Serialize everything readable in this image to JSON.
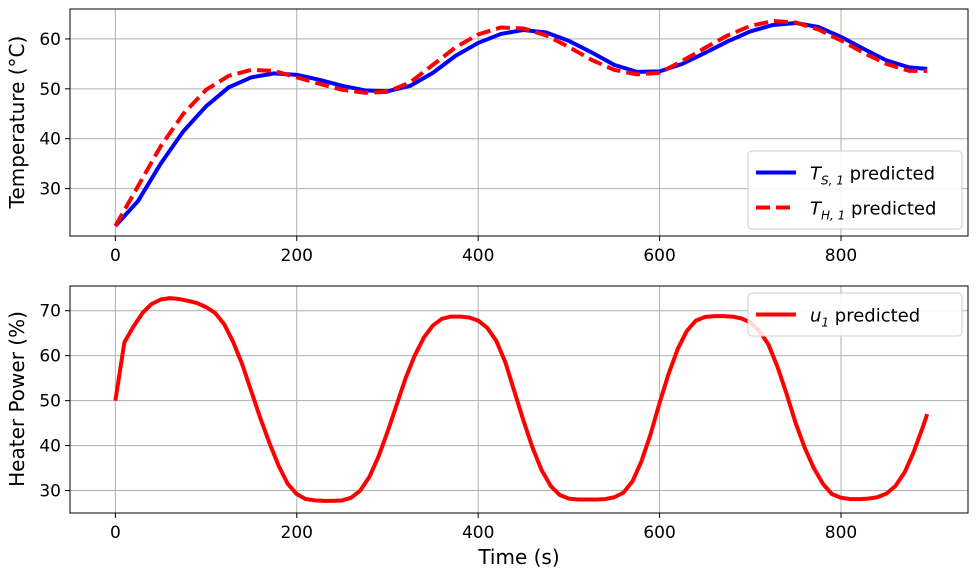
{
  "chart_data": [
    {
      "type": "line",
      "xlabel": "",
      "ylabel": "Temperature (°C)",
      "xlim": [
        -50,
        940
      ],
      "ylim": [
        20.5,
        66
      ],
      "xticks": [
        0,
        200,
        400,
        600,
        800
      ],
      "yticks": [
        30,
        40,
        50,
        60
      ],
      "xtick_labels": [
        "0",
        "200",
        "400",
        "600",
        "800"
      ],
      "ytick_labels": [
        "30",
        "40",
        "50",
        "60"
      ],
      "grid": true,
      "legend": {
        "placement": "lower-right"
      },
      "series": [
        {
          "name": "T_{S,1} predicted",
          "legend_main": "T",
          "legend_sub": "S, 1",
          "legend_rest": " predicted",
          "color": "#0000ff",
          "dash": "solid",
          "x": [
            0,
            25,
            50,
            75,
            100,
            125,
            150,
            175,
            200,
            225,
            250,
            275,
            300,
            325,
            350,
            375,
            400,
            425,
            450,
            475,
            500,
            525,
            550,
            575,
            600,
            625,
            650,
            675,
            700,
            725,
            750,
            775,
            800,
            825,
            850,
            875,
            895
          ],
          "y": [
            22.5,
            27.5,
            35,
            41.5,
            46.5,
            50.3,
            52.3,
            53.1,
            52.8,
            51.8,
            50.6,
            49.7,
            49.5,
            50.6,
            53.2,
            56.6,
            59.2,
            61.0,
            61.8,
            61.3,
            59.6,
            57.3,
            54.8,
            53.4,
            53.5,
            55.0,
            57.2,
            59.5,
            61.5,
            62.8,
            63.2,
            62.4,
            60.4,
            58.0,
            55.7,
            54.3,
            54.0
          ]
        },
        {
          "name": "T_{H,1} predicted",
          "legend_main": "T",
          "legend_sub": "H, 1",
          "legend_rest": " predicted",
          "color": "#ff0000",
          "dash": "dashed",
          "x": [
            0,
            25,
            50,
            75,
            100,
            125,
            150,
            175,
            200,
            225,
            250,
            275,
            300,
            325,
            350,
            375,
            400,
            425,
            450,
            475,
            500,
            525,
            550,
            575,
            600,
            625,
            650,
            675,
            700,
            725,
            750,
            775,
            800,
            825,
            850,
            875,
            895
          ],
          "y": [
            22.5,
            30.5,
            38.5,
            45,
            49.8,
            52.6,
            53.8,
            53.6,
            52.3,
            51.0,
            49.8,
            49.2,
            49.4,
            51.3,
            54.8,
            58.3,
            60.9,
            62.3,
            62.1,
            60.7,
            58.4,
            55.8,
            53.8,
            52.9,
            53.2,
            55.6,
            58.2,
            60.7,
            62.6,
            63.6,
            63.3,
            61.9,
            59.7,
            57.2,
            55.0,
            53.6,
            53.6
          ]
        }
      ]
    },
    {
      "type": "line",
      "xlabel": "Time (s)",
      "ylabel": "Heater Power (%)",
      "xlim": [
        -50,
        940
      ],
      "ylim": [
        25,
        75.5
      ],
      "xticks": [
        0,
        200,
        400,
        600,
        800
      ],
      "yticks": [
        30,
        40,
        50,
        60,
        70
      ],
      "xtick_labels": [
        "0",
        "200",
        "400",
        "600",
        "800"
      ],
      "ytick_labels": [
        "30",
        "40",
        "50",
        "60",
        "70"
      ],
      "grid": true,
      "legend": {
        "placement": "upper-right"
      },
      "series": [
        {
          "name": "u_1 predicted",
          "legend_main": "u",
          "legend_sub": "1",
          "legend_rest": " predicted",
          "color": "#ff0000",
          "dash": "solid",
          "x": [
            0,
            10,
            20,
            30,
            40,
            50,
            60,
            70,
            80,
            90,
            100,
            110,
            120,
            130,
            140,
            150,
            160,
            170,
            180,
            190,
            200,
            210,
            220,
            230,
            240,
            250,
            260,
            270,
            280,
            290,
            300,
            310,
            320,
            330,
            340,
            350,
            360,
            370,
            380,
            390,
            400,
            410,
            420,
            430,
            440,
            450,
            460,
            470,
            480,
            490,
            500,
            510,
            520,
            530,
            540,
            550,
            560,
            570,
            580,
            590,
            600,
            610,
            620,
            630,
            640,
            650,
            660,
            670,
            680,
            690,
            700,
            710,
            720,
            730,
            740,
            750,
            760,
            770,
            780,
            790,
            800,
            810,
            820,
            830,
            840,
            850,
            860,
            870,
            880,
            890,
            895
          ],
          "y": [
            50,
            63,
            66.5,
            69.5,
            71.5,
            72.5,
            72.8,
            72.6,
            72.2,
            71.7,
            70.8,
            69.5,
            67,
            63,
            58,
            52,
            46,
            40.5,
            35.5,
            31.5,
            29.2,
            28.1,
            27.8,
            27.7,
            27.7,
            27.8,
            28.4,
            30,
            33,
            37.5,
            43,
            49,
            55,
            60,
            64,
            66.7,
            68.2,
            68.7,
            68.7,
            68.5,
            67.8,
            66.2,
            63.3,
            58.5,
            52,
            45.5,
            39.5,
            34.5,
            31,
            29,
            28.2,
            28,
            28,
            28,
            28.1,
            28.5,
            29.5,
            32,
            36.5,
            42.5,
            49.5,
            56,
            61.5,
            65.5,
            67.8,
            68.6,
            68.8,
            68.8,
            68.7,
            68.3,
            67.4,
            65.5,
            62.5,
            57.5,
            51.5,
            45,
            39.5,
            35,
            31.5,
            29.2,
            28.4,
            28.1,
            28.1,
            28.2,
            28.5,
            29.3,
            31,
            34,
            38.5,
            44,
            47
          ]
        }
      ]
    }
  ]
}
